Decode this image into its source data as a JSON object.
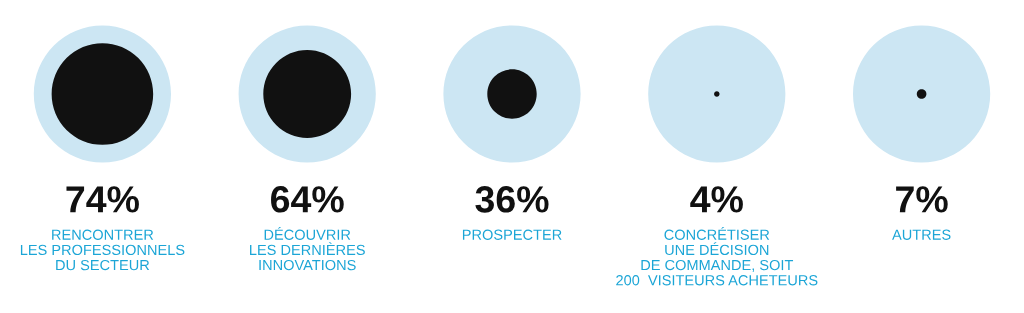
{
  "chart_data": {
    "type": "other",
    "categories": [
      "RENCONTRER\nLES PROFESSIONNELS\nDU SECTEUR",
      "DÉCOUVRIR\nLES DERNIÈRES\nINNOVATIONS",
      "PROSPECTER",
      "CONCRÉTISER\nUNE DÉCISION\nDE COMMANDE, SOIT\n200  VISITEURS ACHETEURS",
      "AUTRES"
    ],
    "values": [
      74,
      64,
      36,
      4,
      7
    ],
    "value_labels": [
      "74%",
      "64%",
      "36%",
      "4%",
      "7%"
    ],
    "color": "#111111"
  }
}
